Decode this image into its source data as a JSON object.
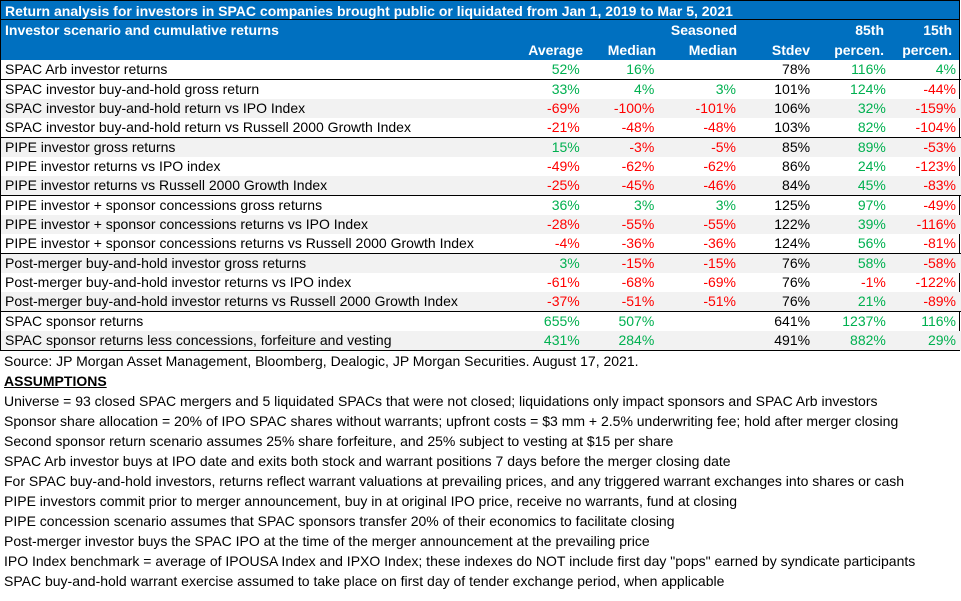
{
  "title": "Return analysis for investors in SPAC companies brought public or liquidated from Jan 1, 2019 to Mar 5, 2021",
  "header": {
    "row1": {
      "label": "Investor scenario and cumulative returns",
      "seasoned_top": "Seasoned",
      "p85_top": "85th",
      "p15_top": "15th"
    },
    "row2": {
      "average": "Average",
      "median": "Median",
      "seasoned_bottom": "Median",
      "stdev": "Stdev",
      "p85_bottom": "percen.",
      "p15_bottom": "percen."
    }
  },
  "rows": [
    {
      "label": "SPAC Arb investor returns",
      "avg": "52%",
      "med": "16%",
      "sea": "",
      "std": "78%",
      "p85": "116%",
      "p15": "4%",
      "group_start": true,
      "alt": false
    },
    {
      "label": "SPAC investor buy-and-hold gross return",
      "avg": "33%",
      "med": "4%",
      "sea": "3%",
      "std": "101%",
      "p85": "124%",
      "p15": "-44%",
      "group_start": true,
      "alt": false
    },
    {
      "label": "SPAC investor buy-and-hold return vs IPO Index",
      "avg": "-69%",
      "med": "-100%",
      "sea": "-101%",
      "std": "106%",
      "p85": "32%",
      "p15": "-159%",
      "group_start": false,
      "alt": true
    },
    {
      "label": "SPAC investor buy-and-hold return vs Russell 2000 Growth Index",
      "avg": "-21%",
      "med": "-48%",
      "sea": "-48%",
      "std": "103%",
      "p85": "82%",
      "p15": "-104%",
      "group_start": false,
      "alt": false
    },
    {
      "label": "PIPE investor gross returns",
      "avg": "15%",
      "med": "-3%",
      "sea": "-5%",
      "std": "85%",
      "p85": "89%",
      "p15": "-53%",
      "group_start": true,
      "alt": true
    },
    {
      "label": "PIPE investor returns vs IPO index",
      "avg": "-49%",
      "med": "-62%",
      "sea": "-62%",
      "std": "86%",
      "p85": "24%",
      "p15": "-123%",
      "group_start": false,
      "alt": false
    },
    {
      "label": "PIPE investor returns vs Russell 2000 Growth Index",
      "avg": "-25%",
      "med": "-45%",
      "sea": "-46%",
      "std": "84%",
      "p85": "45%",
      "p15": "-83%",
      "group_start": false,
      "alt": true
    },
    {
      "label": "PIPE investor + sponsor concessions gross returns",
      "avg": "36%",
      "med": "3%",
      "sea": "3%",
      "std": "125%",
      "p85": "97%",
      "p15": "-49%",
      "group_start": true,
      "alt": false
    },
    {
      "label": "PIPE investor + sponsor concessions returns vs IPO Index",
      "avg": "-28%",
      "med": "-55%",
      "sea": "-55%",
      "std": "122%",
      "p85": "39%",
      "p15": "-116%",
      "group_start": false,
      "alt": true
    },
    {
      "label": "PIPE investor + sponsor concessions returns vs Russell 2000 Growth Index",
      "avg": "-4%",
      "med": "-36%",
      "sea": "-36%",
      "std": "124%",
      "p85": "56%",
      "p15": "-81%",
      "group_start": false,
      "alt": false
    },
    {
      "label": "Post-merger buy-and-hold investor gross returns",
      "avg": "3%",
      "med": "-15%",
      "sea": "-15%",
      "std": "76%",
      "p85": "58%",
      "p15": "-58%",
      "group_start": true,
      "alt": true
    },
    {
      "label": "Post-merger buy-and-hold investor returns vs IPO index",
      "avg": "-61%",
      "med": "-68%",
      "sea": "-69%",
      "std": "76%",
      "p85": "-1%",
      "p15": "-122%",
      "group_start": false,
      "alt": false
    },
    {
      "label": "Post-merger buy-and-hold investor returns vs Russell 2000 Growth Index",
      "avg": "-37%",
      "med": "-51%",
      "sea": "-51%",
      "std": "76%",
      "p85": "21%",
      "p15": "-89%",
      "group_start": false,
      "alt": true
    },
    {
      "label": "SPAC sponsor returns",
      "avg": "655%",
      "med": "507%",
      "sea": "",
      "std": "641%",
      "p85": "1237%",
      "p15": "116%",
      "group_start": true,
      "alt": false
    },
    {
      "label": "SPAC sponsor returns less concessions, forfeiture and vesting",
      "avg": "431%",
      "med": "284%",
      "sea": "",
      "std": "491%",
      "p85": "882%",
      "p15": "29%",
      "group_start": false,
      "alt": true
    }
  ],
  "source": "Source: JP Morgan Asset Management, Bloomberg, Dealogic, JP Morgan Securities. August 17, 2021.",
  "assumptions_heading": "ASSUMPTIONS",
  "assumptions": [
    "Universe = 93 closed SPAC mergers and 5 liquidated SPACs that were not closed; liquidations only impact sponsors and SPAC Arb investors",
    "Sponsor share allocation = 20% of IPO SPAC shares without warrants; upfront costs = $3 mm + 2.5% underwriting fee; hold after merger closing",
    "Second sponsor return scenario assumes 25% share forfeiture, and 25% subject to vesting at $15 per share",
    "SPAC Arb investor buys at IPO date and exits both stock and warrant positions 7 days before the merger closing date",
    "For SPAC buy-and-hold investors, returns reflect warrant valuations at prevailing prices, and any triggered warrant exchanges into shares or cash",
    "PIPE investors commit prior to merger announcement, buy in at original IPO price, receive no warrants, fund at closing",
    "PIPE concession scenario assumes that SPAC sponsors transfer 20% of their economics to facilitate closing",
    "Post-merger investor buys the SPAC IPO at the time of the merger announcement at the prevailing price",
    "IPO Index benchmark = average of IPOUSA Index and IPXO Index; these indexes do NOT include first day \"pops\" earned by syndicate participants",
    "SPAC buy-and-hold warrant exercise assumed to take place on first day of tender exchange period, when applicable"
  ],
  "colors": {
    "header_bg": "#0070c0",
    "positive": "#00b050",
    "negative": "#ff0000",
    "alt_row": "#f2f2f2"
  }
}
